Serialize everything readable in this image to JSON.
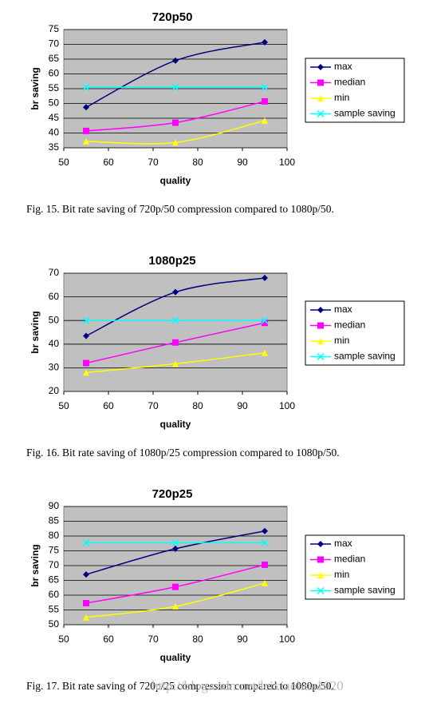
{
  "chart_data": [
    {
      "type": "line",
      "title": "720p50",
      "xlabel": "quality",
      "ylabel": "br saving",
      "caption": "Fig. 15.   Bit rate saving of 720p/50 compression compared to 1080p/50.",
      "x": [
        55,
        75,
        95
      ],
      "xlim": [
        50,
        100
      ],
      "xticks": [
        50,
        60,
        70,
        80,
        90,
        100
      ],
      "ylim": [
        35,
        75
      ],
      "yticks": [
        35,
        40,
        45,
        50,
        55,
        60,
        65,
        70,
        75
      ],
      "grid": true,
      "series": [
        {
          "name": "max",
          "color": "#000080",
          "marker": "diamond",
          "values": [
            48.7,
            64.5,
            70.7
          ]
        },
        {
          "name": "median",
          "color": "#ff00ff",
          "marker": "square",
          "values": [
            40.7,
            43.5,
            50.7
          ]
        },
        {
          "name": "min",
          "color": "#ffff00",
          "marker": "triangle",
          "values": [
            37.2,
            36.8,
            44.2
          ]
        },
        {
          "name": "sample saving",
          "color": "#00ffff",
          "marker": "x",
          "values": [
            55.5,
            55.5,
            55.5
          ]
        }
      ]
    },
    {
      "type": "line",
      "title": "1080p25",
      "xlabel": "quality",
      "ylabel": "br saving",
      "caption": "Fig. 16.   Bit rate saving of 1080p/25 compression compared to 1080p/50.",
      "x": [
        55,
        75,
        95
      ],
      "xlim": [
        50,
        100
      ],
      "xticks": [
        50,
        60,
        70,
        80,
        90,
        100
      ],
      "ylim": [
        20,
        70
      ],
      "yticks": [
        20,
        30,
        40,
        50,
        60,
        70
      ],
      "grid": true,
      "series": [
        {
          "name": "max",
          "color": "#000080",
          "marker": "diamond",
          "values": [
            43.5,
            62,
            68
          ]
        },
        {
          "name": "median",
          "color": "#ff00ff",
          "marker": "square",
          "values": [
            32,
            40.7,
            49
          ]
        },
        {
          "name": "min",
          "color": "#ffff00",
          "marker": "triangle",
          "values": [
            28,
            31.7,
            36.3
          ]
        },
        {
          "name": "sample saving",
          "color": "#00ffff",
          "marker": "x",
          "values": [
            50,
            50,
            50
          ]
        }
      ]
    },
    {
      "type": "line",
      "title": "720p25",
      "xlabel": "quality",
      "ylabel": "br saving",
      "caption": "Fig. 17.   Bit rate saving of 720p/25 compression compared to 1080p/50.",
      "watermark": "http://blog.csdn.net/leixiaohua1020",
      "x": [
        55,
        75,
        95
      ],
      "xlim": [
        50,
        100
      ],
      "xticks": [
        50,
        60,
        70,
        80,
        90,
        100
      ],
      "ylim": [
        50,
        90
      ],
      "yticks": [
        50,
        55,
        60,
        65,
        70,
        75,
        80,
        85,
        90
      ],
      "grid": true,
      "series": [
        {
          "name": "max",
          "color": "#000080",
          "marker": "diamond",
          "values": [
            67,
            75.7,
            81.7
          ]
        },
        {
          "name": "median",
          "color": "#ff00ff",
          "marker": "square",
          "values": [
            57.3,
            62.8,
            70.3
          ]
        },
        {
          "name": "min",
          "color": "#ffff00",
          "marker": "triangle",
          "values": [
            52.5,
            56.2,
            64.1
          ]
        },
        {
          "name": "sample saving",
          "color": "#00ffff",
          "marker": "x",
          "values": [
            77.7,
            77.7,
            77.7
          ]
        }
      ]
    }
  ]
}
